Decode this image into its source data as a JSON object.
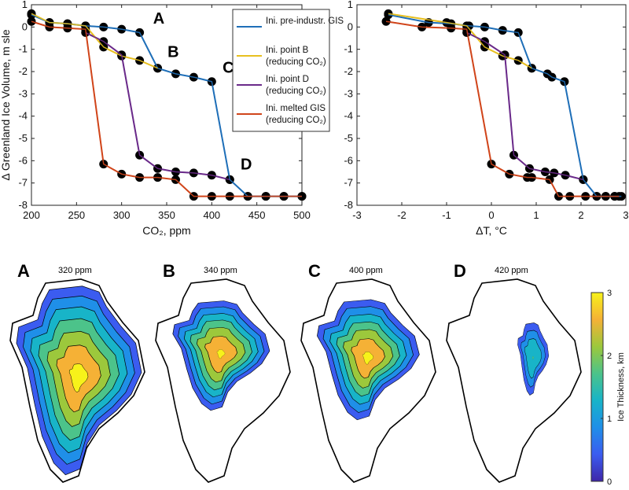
{
  "colors": {
    "blue": "#1f6fb8",
    "yellow": "#e8c020",
    "purple": "#6a2a8a",
    "red": "#d0451b",
    "marker": "#000000"
  },
  "chart_data": [
    {
      "type": "line",
      "xlabel": "CO₂, ppm",
      "ylabel": "Δ Greenland Ice Volume, m sle",
      "xlim": [
        200,
        500
      ],
      "ylim": [
        -8,
        1
      ],
      "xticks": [
        "200",
        "250",
        "300",
        "350",
        "400",
        "450",
        "500"
      ],
      "yticks": [
        "1",
        "0",
        "-1",
        "-2",
        "-3",
        "-4",
        "-5",
        "-6",
        "-7",
        "-8"
      ],
      "legend_position": "top-right",
      "annotations": [
        {
          "text": "A",
          "x": 335,
          "y": 0.15
        },
        {
          "text": "B",
          "x": 351,
          "y": -1.35
        },
        {
          "text": "C",
          "x": 412,
          "y": -2.05
        },
        {
          "text": "D",
          "x": 432,
          "y": -6.4
        }
      ],
      "series": [
        {
          "name": "Ini. pre-industr. GIS",
          "color": "blue",
          "x": [
            200,
            220,
            240,
            260,
            280,
            300,
            320,
            340,
            360,
            380,
            400,
            420,
            440,
            460,
            480,
            500
          ],
          "y": [
            0.55,
            0.2,
            0.15,
            0.05,
            0,
            -0.1,
            -0.25,
            -1.85,
            -2.1,
            -2.25,
            -2.45,
            -6.85,
            -7.6,
            -7.6,
            -7.6,
            -7.6
          ]
        },
        {
          "name": "Ini. point B (reducing CO₂)",
          "color": "yellow",
          "x": [
            200,
            220,
            240,
            260,
            280,
            300,
            320,
            340
          ],
          "y": [
            0.6,
            0.2,
            0.15,
            0.05,
            -0.9,
            -1.3,
            -1.5,
            -1.85
          ]
        },
        {
          "name": "Ini. point D (reducing CO₂)",
          "color": "purple",
          "x": [
            260,
            280,
            300,
            320,
            340,
            360,
            380,
            400,
            420
          ],
          "y": [
            -0.25,
            -0.65,
            -1.25,
            -5.75,
            -6.35,
            -6.5,
            -6.55,
            -6.65,
            -6.85
          ]
        },
        {
          "name": "Ini. melted GIS (reducing CO₂)",
          "color": "red",
          "x": [
            200,
            220,
            240,
            260,
            280,
            300,
            320,
            340,
            360,
            380,
            400,
            420,
            440,
            460,
            480,
            500
          ],
          "y": [
            0.25,
            0,
            -0.05,
            -0.1,
            -6.15,
            -6.6,
            -6.75,
            -6.75,
            -6.85,
            -7.6,
            -7.6,
            -7.6,
            -7.6,
            -7.6,
            -7.6,
            -7.6
          ]
        }
      ]
    },
    {
      "type": "line",
      "xlabel": "ΔT, °C",
      "xlim": [
        -3,
        3
      ],
      "ylim": [
        -8,
        1
      ],
      "xticks": [
        "-3",
        "-2",
        "-1",
        "0",
        "1",
        "2",
        "3"
      ],
      "yticks": [
        "1",
        "0",
        "-1",
        "-2",
        "-3",
        "-4",
        "-5",
        "-6",
        "-7",
        "-8"
      ],
      "series": [
        {
          "color": "blue",
          "x": [
            -2.3,
            -1.4,
            -0.9,
            -0.5,
            -0.15,
            0.25,
            0.6,
            0.9,
            1.25,
            1.35,
            1.63,
            2.05,
            2.35,
            2.55,
            2.75,
            2.9
          ],
          "y": [
            0.55,
            0.2,
            0.15,
            0.05,
            0,
            -0.15,
            -0.25,
            -1.85,
            -2.1,
            -2.25,
            -2.45,
            -6.85,
            -7.6,
            -7.6,
            -7.6,
            -7.6
          ]
        },
        {
          "color": "yellow",
          "x": [
            -2.3,
            -1.0,
            -0.55,
            -0.15,
            0.25,
            0.6,
            0.9
          ],
          "y": [
            0.6,
            0.2,
            0.05,
            -0.9,
            -1.3,
            -1.5,
            -1.85
          ]
        },
        {
          "color": "purple",
          "x": [
            -0.55,
            -0.15,
            0.3,
            0.5,
            0.85,
            1.2,
            1.4,
            1.65,
            2.05
          ],
          "y": [
            -0.25,
            -0.65,
            -1.25,
            -5.75,
            -6.35,
            -6.5,
            -6.55,
            -6.65,
            -6.85
          ]
        },
        {
          "color": "red",
          "x": [
            -2.35,
            -1.55,
            -0.9,
            -0.55,
            0,
            0.4,
            0.8,
            0.9,
            1.3,
            1.5,
            1.75,
            2.1,
            2.35,
            2.55,
            2.75,
            2.85
          ],
          "y": [
            0.25,
            0,
            -0.05,
            -0.1,
            -6.15,
            -6.6,
            -6.75,
            -6.75,
            -6.85,
            -7.6,
            -7.6,
            -7.6,
            -7.6,
            -7.6,
            -7.6,
            -7.6
          ]
        }
      ]
    }
  ],
  "maps": [
    {
      "letter": "A",
      "title": "320 ppm"
    },
    {
      "letter": "B",
      "title": "340 ppm"
    },
    {
      "letter": "C",
      "title": "400 ppm"
    },
    {
      "letter": "D",
      "title": "420 ppm"
    }
  ],
  "colorbar": {
    "label": "Ice Thickness, km",
    "ticks": [
      "3",
      "2",
      "1",
      "0"
    ],
    "range": [
      0,
      3
    ],
    "colors": [
      "#3e26a8",
      "#3b5cf0",
      "#1f8fe8",
      "#18b4c8",
      "#4cc38a",
      "#9cc83c",
      "#f5b136",
      "#f7f21a"
    ]
  }
}
